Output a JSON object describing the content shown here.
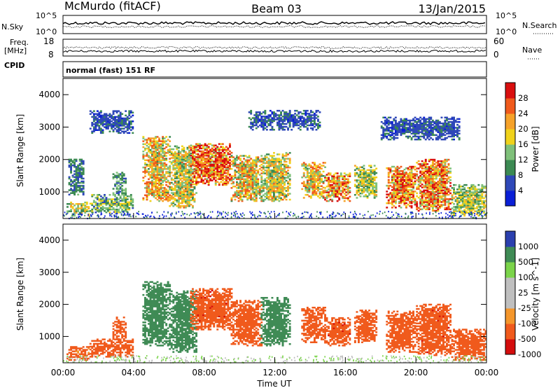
{
  "header": {
    "site": "McMurdo (fitACF)",
    "beam": "Beam 03",
    "date": "13/Jan/2015"
  },
  "labels": {
    "nsky": "N.Sky",
    "nsearch": "N.Search",
    "freq": "Freq.",
    "mhz": "[MHz]",
    "cpid": "CPID",
    "nave": "Nave",
    "cpid_text": "normal (fast) 151 RF",
    "noise_left_top": "10^5",
    "noise_left_bot": "10^0",
    "noise_right_top": "10^5",
    "noise_right_bot": "10^0",
    "freq_top": "18",
    "freq_bot": "8",
    "nave_top": "60",
    "nave_bot": "0",
    "xlabel": "Time UT"
  },
  "colors": {
    "power": [
      "#0a1fd6",
      "#2f48b8",
      "#3c8a53",
      "#7fc07a",
      "#f0d21b",
      "#f6a22a",
      "#f05a1c",
      "#d90f0f"
    ],
    "velocity": [
      "#d40d0d",
      "#f05a1c",
      "#f4962b",
      "#bfbfbf",
      "#bfbfbf",
      "#7bd44a",
      "#3f8b55",
      "#2b3fae"
    ],
    "ground": "#bdbdbd"
  },
  "chart_data": [
    {
      "type": "heatmap",
      "panel": "power",
      "ylabel": "Slant Range [km]",
      "xlabel": "",
      "x_ticks": [
        "00:00",
        "04:00",
        "08:00",
        "12:00",
        "16:00",
        "20:00",
        "00:00"
      ],
      "y_ticks": [
        1000,
        2000,
        3000,
        4000
      ],
      "ylim": [
        180,
        4500
      ],
      "colorbar_label": "Power [dB]",
      "colorbar_ticks": [
        4,
        8,
        12,
        16,
        20,
        24,
        28
      ],
      "colorbar_range": [
        0,
        30
      ],
      "echo_regions": [
        {
          "t0": 0.2,
          "t1": 1.5,
          "r0": 250,
          "r1": 700,
          "v": 15
        },
        {
          "t0": 0.3,
          "t1": 1.2,
          "r0": 900,
          "r1": 2000,
          "v": 8
        },
        {
          "t0": 1.5,
          "t1": 4.0,
          "r0": 350,
          "r1": 900,
          "v": 12
        },
        {
          "t0": 2.8,
          "t1": 3.6,
          "r0": 900,
          "r1": 1600,
          "v": 10
        },
        {
          "t0": 4.5,
          "t1": 6.0,
          "r0": 700,
          "r1": 2700,
          "v": 18
        },
        {
          "t0": 6.0,
          "t1": 7.5,
          "r0": 500,
          "r1": 2400,
          "v": 16
        },
        {
          "t0": 7.2,
          "t1": 9.5,
          "r0": 1200,
          "r1": 2500,
          "v": 24
        },
        {
          "t0": 9.5,
          "t1": 11.2,
          "r0": 700,
          "r1": 2100,
          "v": 18
        },
        {
          "t0": 11.2,
          "t1": 12.8,
          "r0": 700,
          "r1": 2200,
          "v": 16
        },
        {
          "t0": 13.5,
          "t1": 14.8,
          "r0": 800,
          "r1": 1900,
          "v": 18
        },
        {
          "t0": 14.8,
          "t1": 16.3,
          "r0": 700,
          "r1": 1600,
          "v": 22
        },
        {
          "t0": 16.5,
          "t1": 17.8,
          "r0": 800,
          "r1": 1800,
          "v": 14
        },
        {
          "t0": 18.3,
          "t1": 20.0,
          "r0": 500,
          "r1": 1800,
          "v": 22
        },
        {
          "t0": 20.0,
          "t1": 22.0,
          "r0": 400,
          "r1": 2000,
          "v": 22
        },
        {
          "t0": 22.0,
          "t1": 24.0,
          "r0": 250,
          "r1": 1200,
          "v": 14
        },
        {
          "t0": 1.5,
          "t1": 4.0,
          "r0": 2800,
          "r1": 3500,
          "v": 6
        },
        {
          "t0": 10.5,
          "t1": 14.5,
          "r0": 2900,
          "r1": 3500,
          "v": 6
        },
        {
          "t0": 18.0,
          "t1": 22.5,
          "r0": 2600,
          "r1": 3300,
          "v": 6
        }
      ]
    },
    {
      "type": "heatmap",
      "panel": "velocity",
      "ylabel": "Slant Range [km]",
      "xlabel": "Time UT",
      "x_ticks": [
        "00:00",
        "04:00",
        "08:00",
        "12:00",
        "16:00",
        "20:00",
        "00:00"
      ],
      "y_ticks": [
        1000,
        2000,
        3000,
        4000
      ],
      "ylim": [
        180,
        4500
      ],
      "colorbar_label": "Velocity [m s^-1]",
      "colorbar_ticks": [
        "1000",
        "500",
        "100",
        "25",
        "-25",
        "-100",
        "-500",
        "-1000"
      ],
      "echo_regions": [
        {
          "t0": 0.2,
          "t1": 1.5,
          "r0": 250,
          "r1": 700,
          "v": -150
        },
        {
          "t0": 1.5,
          "t1": 4.0,
          "r0": 350,
          "r1": 900,
          "v": -200
        },
        {
          "t0": 2.8,
          "t1": 3.6,
          "r0": 900,
          "r1": 1600,
          "v": -300
        },
        {
          "t0": 4.5,
          "t1": 6.0,
          "r0": 700,
          "r1": 2700,
          "v": 250
        },
        {
          "t0": 6.0,
          "t1": 7.5,
          "r0": 500,
          "r1": 2400,
          "v": 200
        },
        {
          "t0": 7.2,
          "t1": 9.5,
          "r0": 1200,
          "r1": 2500,
          "v": -350
        },
        {
          "t0": 9.5,
          "t1": 11.2,
          "r0": 700,
          "r1": 2100,
          "v": -250
        },
        {
          "t0": 11.2,
          "t1": 12.8,
          "r0": 700,
          "r1": 2200,
          "v": 300
        },
        {
          "t0": 13.5,
          "t1": 14.8,
          "r0": 800,
          "r1": 1900,
          "v": -300
        },
        {
          "t0": 14.8,
          "t1": 16.3,
          "r0": 700,
          "r1": 1600,
          "v": -350
        },
        {
          "t0": 16.5,
          "t1": 17.8,
          "r0": 800,
          "r1": 1800,
          "v": -200
        },
        {
          "t0": 18.3,
          "t1": 20.0,
          "r0": 500,
          "r1": 1800,
          "v": -300
        },
        {
          "t0": 20.0,
          "t1": 22.0,
          "r0": 400,
          "r1": 2000,
          "v": -350
        },
        {
          "t0": 22.0,
          "t1": 24.0,
          "r0": 250,
          "r1": 1200,
          "v": -250
        }
      ]
    }
  ]
}
